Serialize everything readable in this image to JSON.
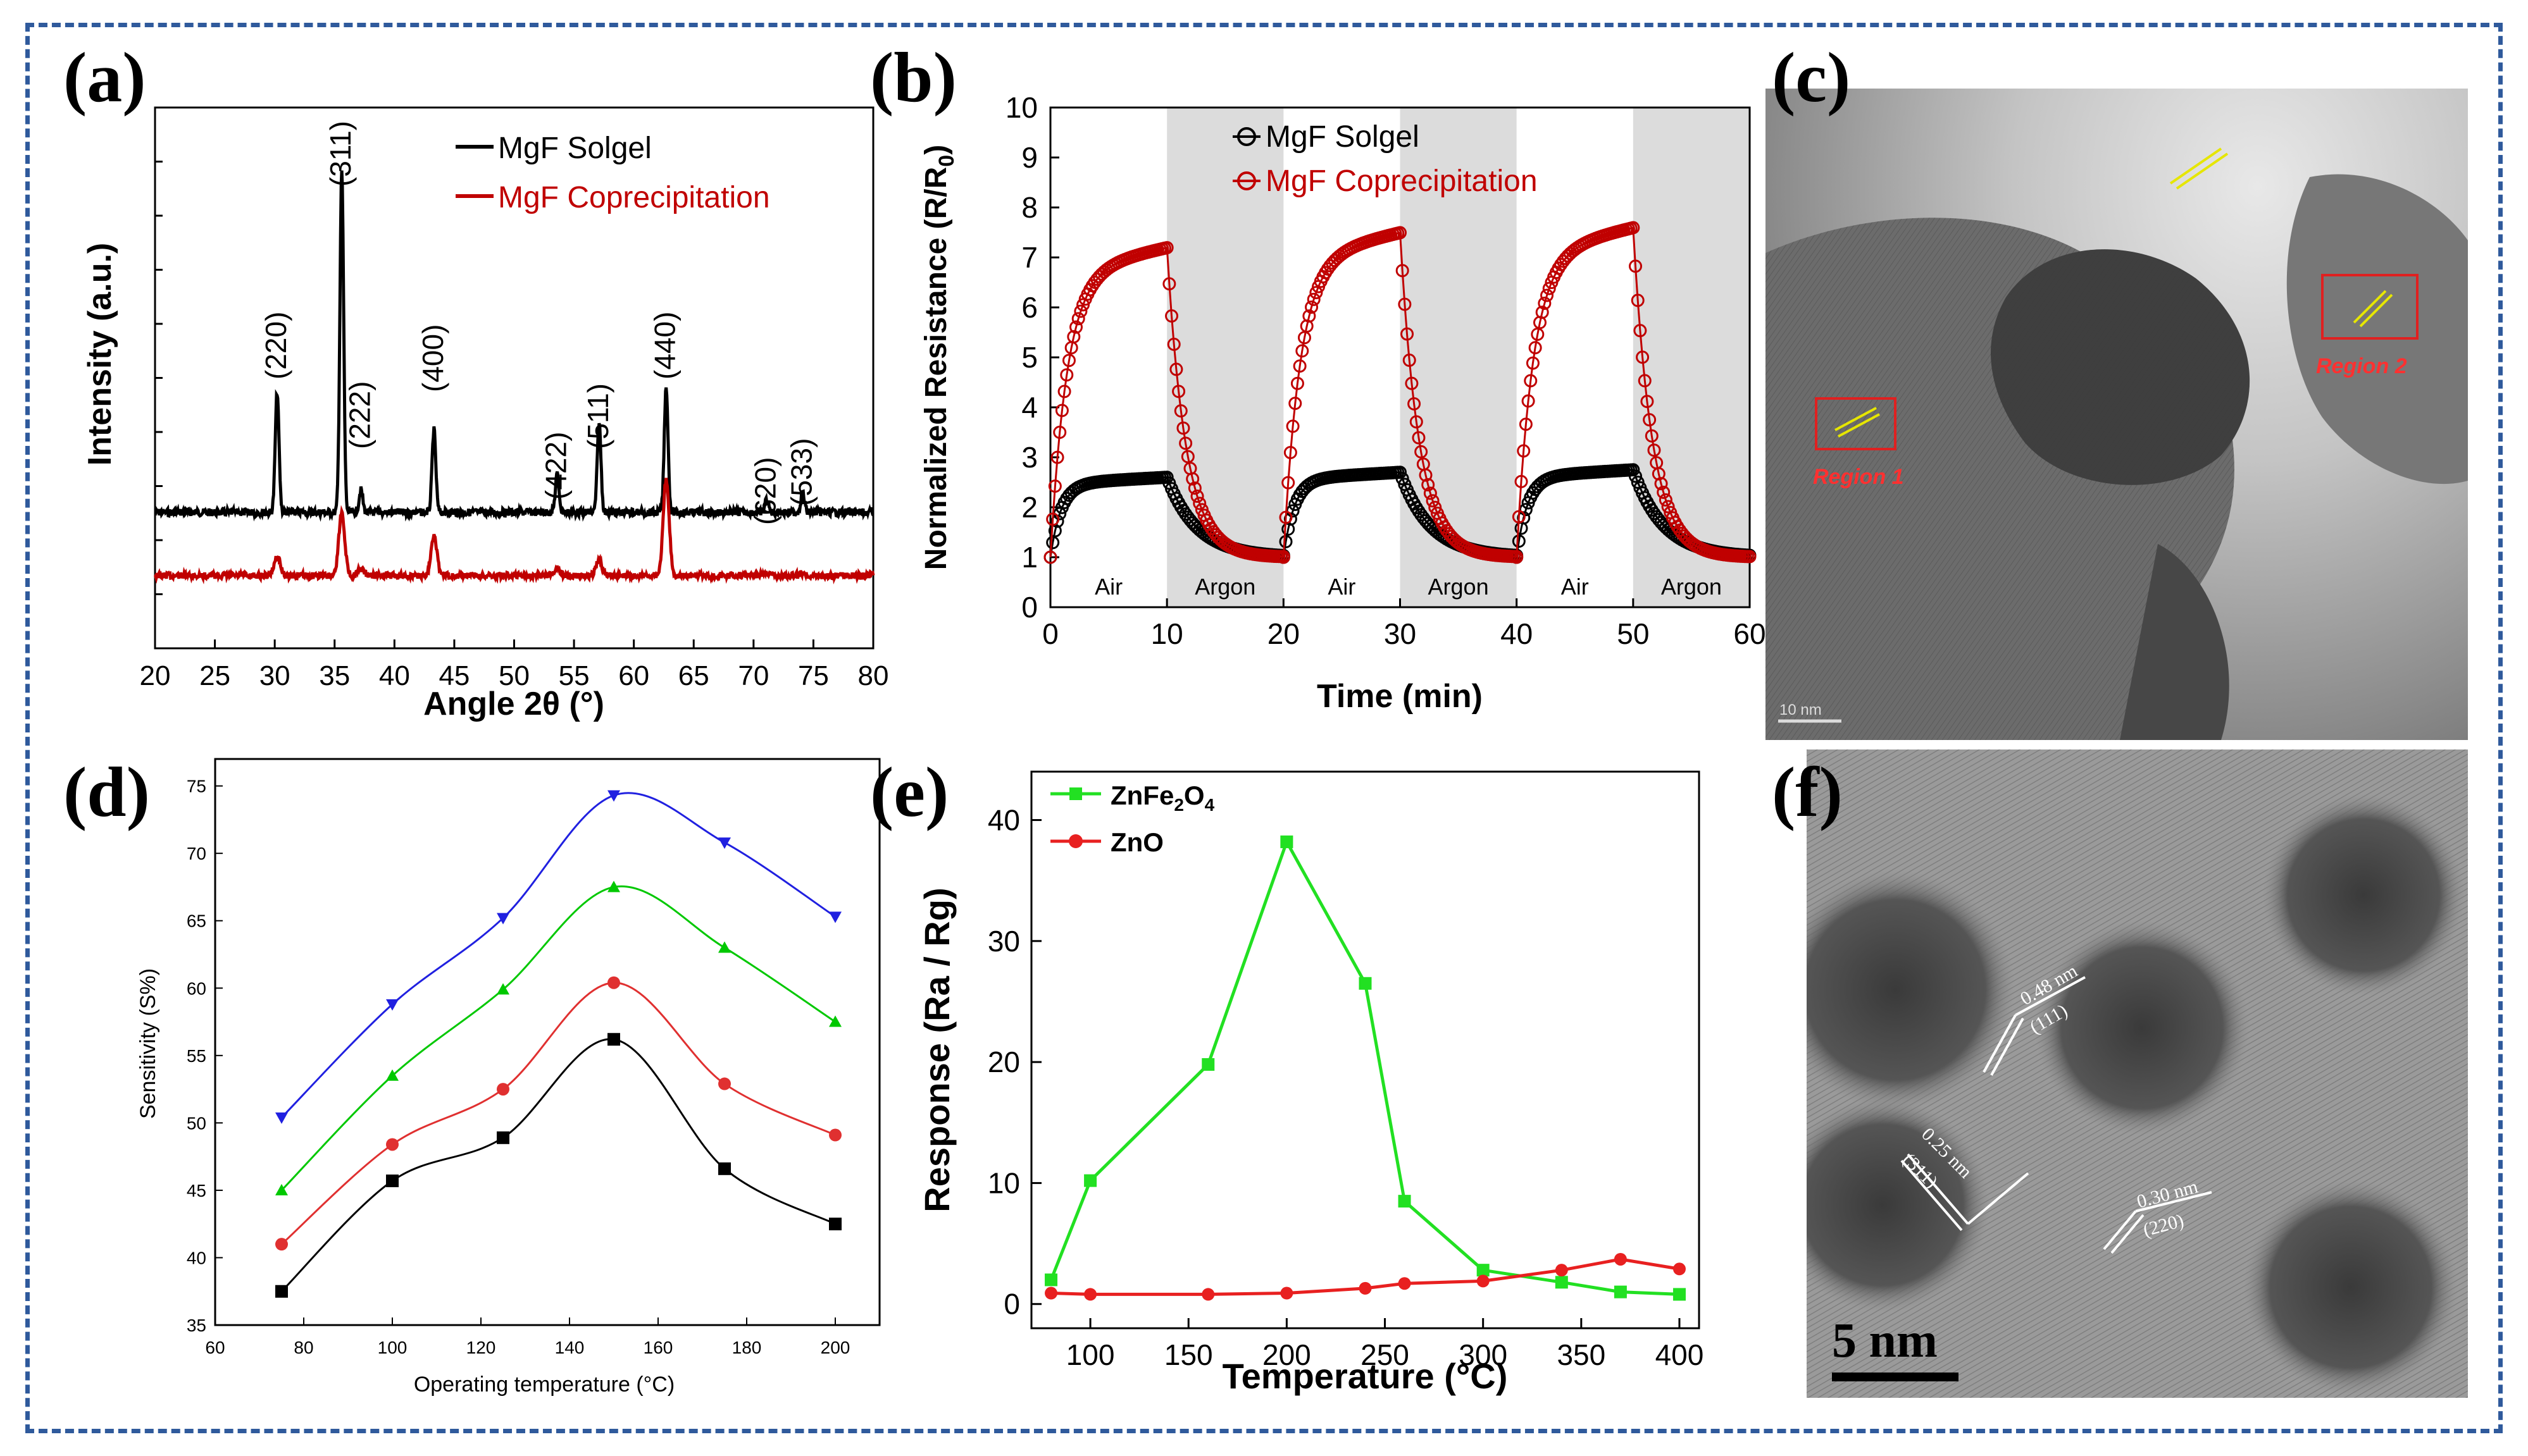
{
  "charts": {
    "a": {
      "panel_label": "(a)",
      "xlabel": "Angle 2θ (°)",
      "ylabel": "Intensity (a.u.)",
      "xlim": [
        20,
        80
      ],
      "xticks": [
        20,
        25,
        30,
        35,
        40,
        45,
        50,
        55,
        60,
        65,
        70,
        75,
        80
      ],
      "legend": [
        {
          "label": "MgF Solgel",
          "color": "#000000"
        },
        {
          "label": "MgF Coprecipitation",
          "color": "#c00000"
        }
      ],
      "peaks": [
        {
          "label": "(220)",
          "x": 30.2
        },
        {
          "label": "(311)",
          "x": 35.6
        },
        {
          "label": "(222)",
          "x": 37.2
        },
        {
          "label": "(400)",
          "x": 43.3
        },
        {
          "label": "(422)",
          "x": 53.6
        },
        {
          "label": "(511)",
          "x": 57.1
        },
        {
          "label": "(440)",
          "x": 62.7
        },
        {
          "label": "(620)",
          "x": 71.1
        },
        {
          "label": "(533)",
          "x": 74.1
        }
      ]
    },
    "b": {
      "panel_label": "(b)",
      "xlabel": "Time (min)",
      "ylabel_main": "Normalized Resistance (R/R",
      "ylabel_sub": "0",
      "ylabel_end": ")",
      "xlim": [
        0,
        60
      ],
      "ylim": [
        0,
        10
      ],
      "xticks": [
        0,
        10,
        20,
        30,
        40,
        50,
        60
      ],
      "yticks": [
        0,
        1,
        2,
        3,
        4,
        5,
        6,
        7,
        8,
        9,
        10
      ],
      "legend": [
        {
          "label": "MgF Solgel",
          "color": "#000000"
        },
        {
          "label": "MgF Coprecipitation",
          "color": "#c00000"
        }
      ],
      "regions": [
        {
          "label": "Air",
          "from": 0,
          "to": 10,
          "shaded": false
        },
        {
          "label": "Argon",
          "from": 10,
          "to": 20,
          "shaded": true
        },
        {
          "label": "Air",
          "from": 20,
          "to": 30,
          "shaded": false
        },
        {
          "label": "Argon",
          "from": 30,
          "to": 40,
          "shaded": true
        },
        {
          "label": "Air",
          "from": 40,
          "to": 50,
          "shaded": false
        },
        {
          "label": "Argon",
          "from": 50,
          "to": 60,
          "shaded": true
        }
      ],
      "series": [
        {
          "name": "MgF Solgel",
          "baseline": 1.0,
          "peaks": [
            2.6,
            2.7,
            2.75
          ]
        },
        {
          "name": "MgF Coprecipitation",
          "baseline": 1.0,
          "peaks": [
            7.2,
            7.5,
            7.6
          ]
        }
      ]
    },
    "d": {
      "panel_label": "(d)",
      "xlabel": "Operating temperature (°C)",
      "ylabel": "Sensitivity (S%)",
      "xlim": [
        60,
        210
      ],
      "ylim": [
        35,
        77
      ],
      "xticks": [
        60,
        80,
        100,
        120,
        140,
        160,
        180,
        200
      ],
      "yticks": [
        35,
        40,
        45,
        50,
        55,
        60,
        65,
        70,
        75
      ],
      "x": [
        75,
        100,
        125,
        150,
        175,
        200
      ],
      "series": [
        {
          "name": "series-black",
          "color": "#000000",
          "marker": "square",
          "values": [
            37.5,
            45.7,
            48.9,
            56.2,
            46.6,
            42.5
          ]
        },
        {
          "name": "series-red",
          "color": "#e03030",
          "marker": "circle",
          "values": [
            41.0,
            48.4,
            52.5,
            60.4,
            52.9,
            49.1
          ]
        },
        {
          "name": "series-green",
          "color": "#00c800",
          "marker": "triangle-up",
          "values": [
            45.0,
            53.5,
            59.9,
            67.5,
            63.0,
            57.5
          ]
        },
        {
          "name": "series-blue",
          "color": "#2020e0",
          "marker": "triangle-down",
          "values": [
            50.4,
            58.8,
            65.2,
            74.3,
            70.8,
            65.3
          ]
        }
      ]
    },
    "e": {
      "panel_label": "(e)",
      "xlabel": "Temperature (°C)",
      "ylabel": "Response (Ra / Rg)",
      "xlim": [
        70,
        410
      ],
      "ylim": [
        -2,
        44
      ],
      "xticks": [
        100,
        150,
        200,
        250,
        300,
        350,
        400
      ],
      "yticks": [
        0,
        10,
        20,
        30,
        40
      ],
      "series": [
        {
          "name": "ZnFe2O4",
          "label_main": "ZnFe",
          "sub1": "2",
          "mid": "O",
          "sub2": "4",
          "color": "#22e022",
          "marker": "square",
          "x": [
            80,
            100,
            160,
            200,
            240,
            260,
            300,
            340,
            370,
            400
          ],
          "y": [
            2.0,
            10.2,
            19.8,
            38.2,
            26.5,
            8.5,
            2.8,
            1.8,
            1.0,
            0.8
          ]
        },
        {
          "name": "ZnO",
          "label_main": "ZnO",
          "color": "#e82020",
          "marker": "circle",
          "x": [
            80,
            100,
            160,
            200,
            240,
            260,
            300,
            340,
            370,
            400
          ],
          "y": [
            0.9,
            0.8,
            0.8,
            0.9,
            1.3,
            1.7,
            1.9,
            2.8,
            3.7,
            2.9
          ]
        }
      ]
    }
  },
  "micrographs": {
    "c": {
      "panel_label": "(c)",
      "region_labels": [
        "Region 1",
        "Region 2"
      ],
      "scale_bar": "10 nm"
    },
    "f": {
      "panel_label": "(f)",
      "scale_bar": "5 nm",
      "spacings": [
        {
          "d": "0.48 nm",
          "plane": "(111)"
        },
        {
          "d": "0.25 nm",
          "plane": "(311)"
        },
        {
          "d": "0.30 nm",
          "plane": "(220)"
        }
      ]
    }
  }
}
